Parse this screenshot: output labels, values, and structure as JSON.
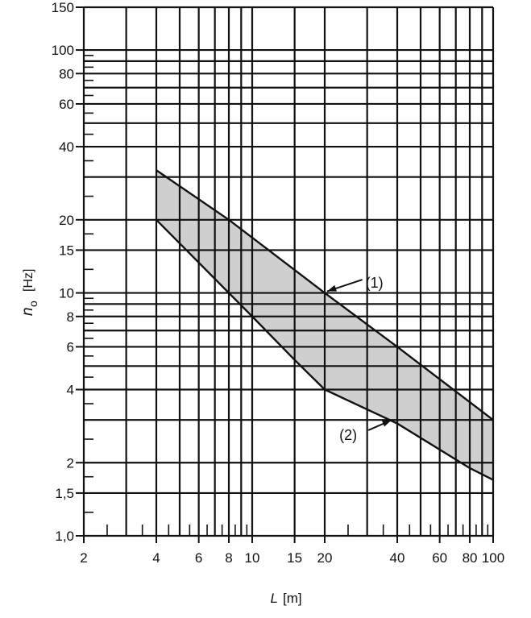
{
  "chart_data": {
    "type": "line",
    "title": "",
    "xlabel": "L",
    "xlabel_unit": "[m]",
    "ylabel": "n",
    "ylabel_sub": "o",
    "ylabel_unit": "[Hz]",
    "xscale": "log",
    "yscale": "log",
    "xlim": [
      2,
      100
    ],
    "ylim": [
      1,
      150
    ],
    "grid": true,
    "x_ticks": [
      {
        "v": 2,
        "label": "2"
      },
      {
        "v": 4,
        "label": "4"
      },
      {
        "v": 6,
        "label": "6"
      },
      {
        "v": 8,
        "label": "8"
      },
      {
        "v": 10,
        "label": "10"
      },
      {
        "v": 15,
        "label": "15"
      },
      {
        "v": 20,
        "label": "20"
      },
      {
        "v": 40,
        "label": "40"
      },
      {
        "v": 60,
        "label": "60"
      },
      {
        "v": 80,
        "label": "80"
      },
      {
        "v": 100,
        "label": "100"
      }
    ],
    "y_ticks": [
      {
        "v": 1,
        "label": "1,0"
      },
      {
        "v": 1.5,
        "label": "1,5"
      },
      {
        "v": 2,
        "label": "2"
      },
      {
        "v": 4,
        "label": "4"
      },
      {
        "v": 6,
        "label": "6"
      },
      {
        "v": 8,
        "label": "8"
      },
      {
        "v": 10,
        "label": "10"
      },
      {
        "v": 15,
        "label": "15"
      },
      {
        "v": 20,
        "label": "20"
      },
      {
        "v": 40,
        "label": "40"
      },
      {
        "v": 60,
        "label": "60"
      },
      {
        "v": 80,
        "label": "80"
      },
      {
        "v": 100,
        "label": "100"
      },
      {
        "v": 150,
        "label": "150"
      }
    ],
    "x_grid": [
      2,
      3,
      4,
      5,
      6,
      7,
      8,
      9,
      10,
      15,
      20,
      30,
      40,
      50,
      60,
      70,
      80,
      90,
      100
    ],
    "y_grid": [
      1,
      1.5,
      2,
      3,
      4,
      5,
      6,
      7,
      8,
      9,
      10,
      15,
      20,
      30,
      40,
      50,
      60,
      70,
      80,
      90,
      100,
      150
    ],
    "series": [
      {
        "name": "(1)",
        "label": "(1)",
        "points": [
          [
            4,
            32
          ],
          [
            8,
            20
          ],
          [
            20,
            10
          ],
          [
            40,
            6
          ],
          [
            100,
            3
          ]
        ],
        "annotation_at": [
          20,
          10
        ],
        "label_pos": [
          30,
          11
        ]
      },
      {
        "name": "(2)",
        "label": "(2)",
        "points": [
          [
            4,
            20
          ],
          [
            10,
            8
          ],
          [
            15,
            5.3
          ],
          [
            20,
            4
          ],
          [
            40,
            2.9
          ],
          [
            80,
            1.9
          ],
          [
            100,
            1.7
          ]
        ],
        "annotation_at": [
          37,
          2.95
        ],
        "label_pos": [
          23,
          2.6
        ]
      }
    ],
    "shaded_region": "between (1) and (2)",
    "colors": {
      "line": "#111111",
      "fill": "#cfcfcf"
    }
  }
}
